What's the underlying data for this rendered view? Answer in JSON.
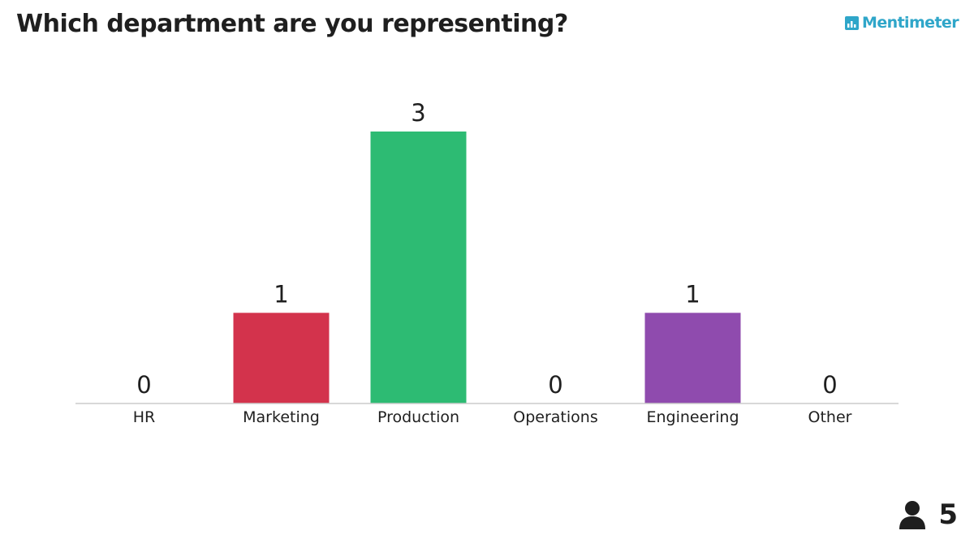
{
  "question": "Which department are you representing?",
  "brand": {
    "name": "Mentimeter",
    "color": "#2fa6c9",
    "icon": "bar-chart-logo-icon"
  },
  "participants": {
    "icon": "person-icon",
    "count": "5"
  },
  "chart_data": {
    "type": "bar",
    "categories": [
      "HR",
      "Marketing",
      "Production",
      "Operations",
      "Engineering",
      "Other"
    ],
    "values": [
      0,
      1,
      3,
      0,
      1,
      0
    ],
    "colors": [
      "#5a7bd5",
      "#d3334c",
      "#2dbb73",
      "#f0a030",
      "#8f4bae",
      "#4a9fd8"
    ],
    "title": "",
    "xlabel": "",
    "ylabel": "",
    "ylim": [
      0,
      3
    ],
    "grid": false,
    "legend": "none",
    "baseline_color": "#cccccc"
  }
}
